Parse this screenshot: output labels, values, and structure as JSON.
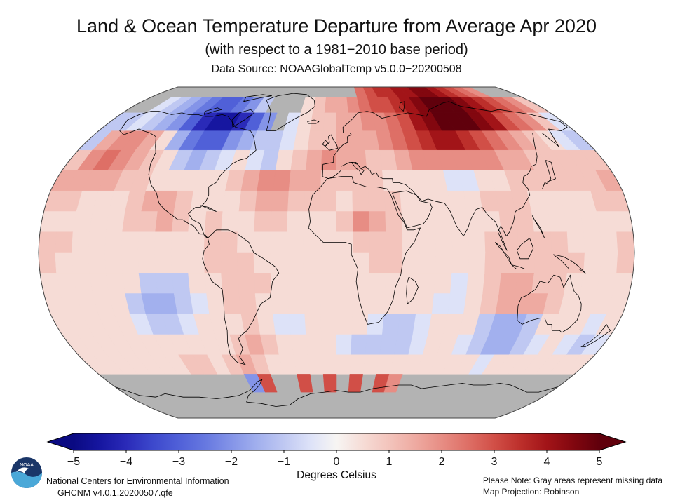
{
  "header": {
    "title": "Land & Ocean Temperature Departure from Average Apr 2020",
    "subtitle": "(with respect to a 1981−2010 base period)",
    "source": "Data Source: NOAAGlobalTemp v5.0.0−20200508"
  },
  "colors": {
    "logo_navy": "#1a3668",
    "logo_sky": "#4aa8d8",
    "missing_gray": "#b3b3b3"
  },
  "chart_data": {
    "type": "heatmap",
    "title": "Land & Ocean Temperature Departure from Average Apr 2020",
    "projection": "Robinson",
    "units": "Degrees Celsius",
    "lon_start": -180,
    "lon_step": 10,
    "lat_start": 90,
    "lat_step": -10,
    "missing_color": "#b3b3b3",
    "color_scale": [
      [
        -5,
        "#0a0a82"
      ],
      [
        -4.5,
        "#1616a0"
      ],
      [
        -4,
        "#2a2ab8"
      ],
      [
        -3.5,
        "#3c48cc"
      ],
      [
        -3,
        "#5060d8"
      ],
      [
        -2.5,
        "#6678e0"
      ],
      [
        -2,
        "#8494e8"
      ],
      [
        -1.5,
        "#a2b0ee"
      ],
      [
        -1,
        "#bfc8f2"
      ],
      [
        -0.5,
        "#dde2f8"
      ],
      [
        0,
        "#f7f5f3"
      ],
      [
        0.5,
        "#f6dcd6"
      ],
      [
        1,
        "#f3c4bc"
      ],
      [
        1.5,
        "#eeaaa1"
      ],
      [
        2,
        "#e78d84"
      ],
      [
        2.5,
        "#de6f66"
      ],
      [
        3,
        "#d14f47"
      ],
      [
        3.5,
        "#bc2f2b"
      ],
      [
        4,
        "#a21418"
      ],
      [
        4.5,
        "#82070f"
      ],
      [
        5,
        "#60000c"
      ]
    ],
    "anomaly_grid": [
      [
        null,
        null,
        null,
        null,
        null,
        null,
        null,
        null,
        null,
        null,
        null,
        null,
        null,
        null,
        null,
        null,
        null,
        null,
        null,
        null,
        2.5,
        3,
        3.5,
        3.5,
        4,
        4,
        4.5,
        4.5,
        4,
        3.5,
        3,
        2.5,
        2,
        null,
        null,
        null
      ],
      [
        null,
        null,
        -0.5,
        -1,
        -1.5,
        -2,
        -2.5,
        -3,
        -3,
        -2.5,
        -2,
        -1,
        null,
        null,
        null,
        0.5,
        1,
        1.5,
        1.5,
        2,
        2.5,
        3,
        3,
        3.5,
        4,
        4.5,
        5,
        5,
        5,
        4.5,
        4,
        3.5,
        3,
        2.5,
        2,
        1
      ],
      [
        -1,
        -1,
        -0.5,
        -1,
        -1.5,
        -2,
        -3,
        -4,
        -4.5,
        -4.5,
        -4,
        -3,
        -2,
        null,
        -0.5,
        0.5,
        1,
        1,
        1.5,
        1.5,
        2,
        2,
        2.5,
        3,
        4,
        4.5,
        5,
        5,
        5,
        4.5,
        4,
        3,
        2.5,
        2,
        1,
        -0.5
      ],
      [
        -1,
        1.5,
        2,
        2,
        1.5,
        0.5,
        -1.5,
        -2.5,
        -3,
        -3,
        -2,
        -1.5,
        -1,
        -1,
        -0.5,
        0.5,
        1,
        1,
        1.5,
        1.5,
        1.5,
        2,
        2.5,
        3,
        3.5,
        4,
        4,
        3.5,
        3,
        2.5,
        2,
        1.5,
        1,
        0.5,
        -0.5,
        -1
      ],
      [
        1,
        2,
        2.5,
        2,
        1.5,
        1,
        0.5,
        -1,
        -1.5,
        -1,
        -0.5,
        0.5,
        -0.5,
        -1,
        0.5,
        1,
        1.5,
        2,
        1.5,
        1.5,
        1,
        1,
        1.5,
        2,
        2,
        2,
        2,
        2,
        2,
        1.5,
        1.5,
        1,
        1,
        1,
        1,
        1
      ],
      [
        1.5,
        1.5,
        1.5,
        1.5,
        1,
        1,
        0.5,
        0.5,
        0.5,
        0.5,
        0.5,
        1,
        1.5,
        2,
        2,
        1.5,
        1.5,
        1,
        1,
        1,
        1,
        0.5,
        0.5,
        0.5,
        0.5,
        -0.5,
        -0.5,
        0.5,
        0.5,
        1,
        1,
        1,
        1,
        1,
        1,
        1.5
      ],
      [
        1,
        1,
        0.5,
        0.5,
        0.5,
        1,
        1.5,
        1.5,
        1,
        0.5,
        0.5,
        0.5,
        1,
        1.5,
        1.5,
        1,
        1,
        1,
        0.5,
        1,
        1,
        1,
        0.5,
        0.5,
        0.5,
        0.5,
        0.5,
        1,
        1,
        1,
        0.5,
        0.5,
        0.5,
        0.5,
        1,
        1
      ],
      [
        0.5,
        0.5,
        0.5,
        0.5,
        0.5,
        1,
        1,
        1.5,
        1,
        0.5,
        1,
        0.5,
        0.5,
        1,
        1,
        0.5,
        0.5,
        0.5,
        1,
        2,
        1.5,
        1,
        0.5,
        0.5,
        0.5,
        0.5,
        0.5,
        0.5,
        1,
        1,
        0.5,
        0.5,
        0.5,
        0.5,
        0.5,
        0.5
      ],
      [
        1,
        1,
        0.5,
        0.5,
        0.5,
        0.5,
        0.5,
        0.5,
        0.5,
        0.5,
        1,
        1,
        0.5,
        0.5,
        0.5,
        0.5,
        0.5,
        0.5,
        0.5,
        1,
        1,
        1,
        0.5,
        0.5,
        0.5,
        0.5,
        0.5,
        1,
        1,
        1,
        1,
        1,
        0.5,
        0.5,
        0.5,
        1
      ],
      [
        1,
        0.5,
        0.5,
        0.5,
        0.5,
        0.5,
        0.5,
        0.5,
        0.5,
        0.5,
        1,
        1,
        1,
        0.5,
        0.5,
        0.5,
        0.5,
        0.5,
        0.5,
        0.5,
        1,
        1,
        0.5,
        0.5,
        0.5,
        0.5,
        0.5,
        1,
        1,
        1,
        1,
        1,
        1,
        0.5,
        0.5,
        1
      ],
      [
        0.5,
        0.5,
        0.5,
        0.5,
        0.5,
        0.5,
        -1,
        -1,
        -1,
        0.5,
        0.5,
        1,
        1,
        1,
        0.5,
        0.5,
        0.5,
        0.5,
        0.5,
        0.5,
        0.5,
        0.5,
        0.5,
        0.5,
        0.5,
        -0.5,
        0.5,
        1,
        1.5,
        1.5,
        1,
        1,
        0.5,
        0.5,
        0.5,
        0.5
      ],
      [
        0.5,
        0.5,
        0.5,
        0.5,
        0.5,
        -1,
        -1.5,
        -1.5,
        -1,
        -0.5,
        0.5,
        1,
        1,
        0.5,
        0.5,
        0.5,
        0.5,
        0.5,
        0.5,
        0.5,
        0.5,
        0.5,
        0.5,
        0.5,
        -0.5,
        -0.5,
        0.5,
        1,
        1.5,
        1.5,
        1.5,
        1,
        0.5,
        0.5,
        0.5,
        0.5
      ],
      [
        0.5,
        0.5,
        0.5,
        0.5,
        0.5,
        -0.5,
        -1,
        -1,
        -0.5,
        0.5,
        0.5,
        0.5,
        1,
        0.5,
        -0.5,
        -0.5,
        0.5,
        0.5,
        0.5,
        0.5,
        -0.5,
        -1,
        -1,
        -0.5,
        0.5,
        0.5,
        0.5,
        -1,
        -1.5,
        -1.5,
        -1,
        0.5,
        0.5,
        0.5,
        -0.5,
        0.5
      ],
      [
        0.5,
        0.5,
        0.5,
        0.5,
        0.5,
        0.5,
        0.5,
        0.5,
        0.5,
        0.5,
        0.5,
        1,
        1.5,
        1,
        0.5,
        0.5,
        0.5,
        0.5,
        -0.5,
        -1,
        -1,
        -1,
        -1,
        -0.5,
        0.5,
        0.5,
        -0.5,
        -1,
        -1.5,
        -1.5,
        -1,
        -0.5,
        0.5,
        -0.5,
        -1,
        -0.5
      ],
      [
        0.5,
        0.5,
        0.5,
        0.5,
        0.5,
        0.5,
        0.5,
        1,
        1,
        0.5,
        1,
        1.5,
        1,
        0.5,
        0.5,
        0.5,
        0.5,
        0.5,
        0.5,
        0.5,
        0.5,
        0.5,
        0.5,
        0.5,
        0.5,
        0.5,
        0.5,
        0.5,
        -0.5,
        0.5,
        0.5,
        0.5,
        0.5,
        0.5,
        0.5,
        0.5
      ],
      [
        null,
        null,
        null,
        null,
        null,
        null,
        null,
        null,
        null,
        null,
        null,
        -2,
        3,
        null,
        null,
        3,
        null,
        3,
        null,
        3,
        null,
        3,
        2,
        null,
        null,
        null,
        null,
        null,
        null,
        null,
        null,
        null,
        null,
        null,
        null,
        null
      ],
      [
        null,
        null,
        null,
        null,
        null,
        null,
        null,
        null,
        null,
        null,
        null,
        null,
        null,
        null,
        null,
        null,
        null,
        null,
        null,
        null,
        null,
        null,
        null,
        null,
        null,
        null,
        null,
        null,
        null,
        null,
        null,
        null,
        null,
        null,
        null,
        null
      ],
      [
        null,
        null,
        null,
        null,
        null,
        null,
        null,
        null,
        null,
        null,
        null,
        null,
        null,
        null,
        null,
        null,
        null,
        null,
        null,
        null,
        null,
        null,
        null,
        null,
        null,
        null,
        null,
        null,
        null,
        null,
        null,
        null,
        null,
        null,
        null,
        null
      ]
    ],
    "colorbar": {
      "min": -5,
      "max": 5,
      "ticks": [
        -5,
        -4,
        -3,
        -2,
        -1,
        0,
        1,
        2,
        3,
        4,
        5
      ],
      "tick_labels": [
        "−5",
        "−4",
        "−3",
        "−2",
        "−1",
        "0",
        "1",
        "2",
        "3",
        "4",
        "5"
      ],
      "label": "Degrees Celsius"
    }
  },
  "footer": {
    "logo_text": "NOAA",
    "org": "National Centers for Environmental Information",
    "dataset": "GHCNM v4.0.1.20200507.qfe",
    "note": "Please Note: Gray areas represent missing data",
    "projection": "Map Projection: Robinson"
  }
}
